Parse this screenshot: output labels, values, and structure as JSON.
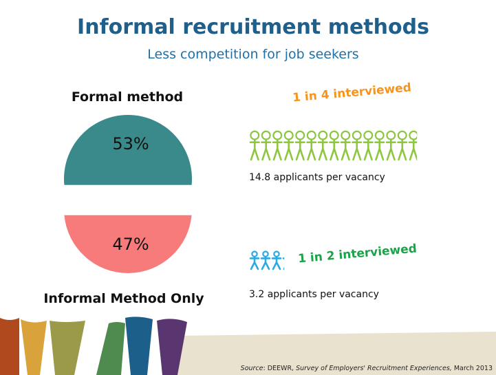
{
  "title": "Informal recruitment methods",
  "subtitle": "Less competition for job seekers",
  "chart_data": {
    "type": "pie",
    "categories": [
      "Formal method",
      "Informal Method Only"
    ],
    "values": [
      53,
      47
    ],
    "value_labels": [
      "53%",
      "47%"
    ],
    "colors": [
      "#3a8a8c",
      "#f77b7b"
    ]
  },
  "panels": [
    {
      "interviewed": "1 in 4 interviewed",
      "applicants": 14.8,
      "caption": "applicants per vacancy",
      "icon_color": "#8dc63f",
      "label_color": "#f7941d"
    },
    {
      "interviewed": "1 in 2 interviewed",
      "applicants": 3.2,
      "caption": "applicants per vacancy",
      "icon_color": "#29abe2",
      "label_color": "#1aa34a"
    }
  ],
  "source": {
    "label": "Source",
    "org": ": DEEWR, ",
    "publication": "Survey of Employers' Recruitment Experiences,",
    "date": " March 2013"
  }
}
